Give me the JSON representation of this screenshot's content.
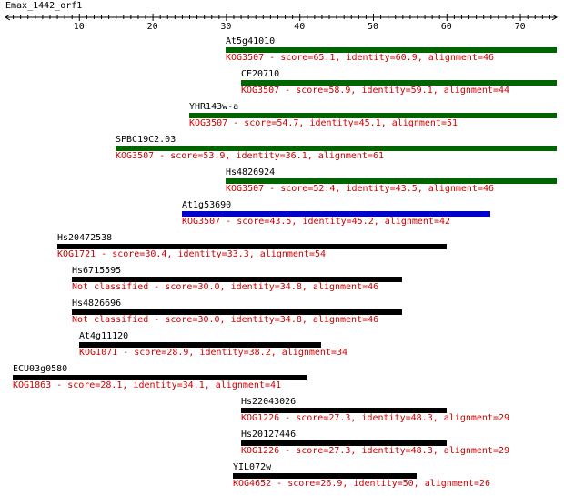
{
  "query": {
    "title": "Emax_1442_orf1",
    "axis": {
      "min": 0,
      "max": 75,
      "major_step": 10,
      "minor_step": 1,
      "labels": [
        "10",
        "20",
        "30",
        "40",
        "50",
        "60",
        "70"
      ]
    }
  },
  "colors": {
    "green": "#006400",
    "blue": "#0000cc",
    "black": "#000000",
    "desc": "#d00000"
  },
  "hits": [
    {
      "name": "At5g41010",
      "start": 30,
      "end": 75,
      "color": "#006400",
      "desc": "KOG3507 - score=65.1, identity=60.9, alignment=46"
    },
    {
      "name": "CE20710",
      "start": 32,
      "end": 75,
      "color": "#006400",
      "desc": "KOG3507 - score=58.9, identity=59.1, alignment=44"
    },
    {
      "name": "YHR143w-a",
      "start": 25,
      "end": 75,
      "color": "#006400",
      "desc": "KOG3507 - score=54.7, identity=45.1, alignment=51"
    },
    {
      "name": "SPBC19C2.03",
      "start": 15,
      "end": 75,
      "color": "#006400",
      "desc": "KOG3507 - score=53.9, identity=36.1, alignment=61"
    },
    {
      "name": "Hs4826924",
      "start": 30,
      "end": 75,
      "color": "#006400",
      "desc": "KOG3507 - score=52.4, identity=43.5, alignment=46"
    },
    {
      "name": "At1g53690",
      "start": 24,
      "end": 66,
      "color": "#0000cc",
      "desc": "KOG3507 - score=43.5, identity=45.2, alignment=42"
    },
    {
      "name": "Hs20472538",
      "start": 7,
      "end": 60,
      "color": "#000000",
      "desc": "KOG1721 - score=30.4, identity=33.3, alignment=54"
    },
    {
      "name": "Hs6715595",
      "start": 9,
      "end": 54,
      "color": "#000000",
      "desc": "Not classified - score=30.0, identity=34.8, alignment=46"
    },
    {
      "name": "Hs4826696",
      "start": 9,
      "end": 54,
      "color": "#000000",
      "desc": "Not classified - score=30.0, identity=34.8, alignment=46"
    },
    {
      "name": "At4g11120",
      "start": 10,
      "end": 43,
      "color": "#000000",
      "desc": "KOG1071 - score=28.9, identity=38.2, alignment=34"
    },
    {
      "name": "ECU03g0580",
      "start": 1,
      "end": 41,
      "color": "#000000",
      "desc": "KOG1863 - score=28.1, identity=34.1, alignment=41"
    },
    {
      "name": "Hs22043026",
      "start": 32,
      "end": 60,
      "color": "#000000",
      "desc": "KOG1226 - score=27.3, identity=48.3, alignment=29"
    },
    {
      "name": "Hs20127446",
      "start": 32,
      "end": 60,
      "color": "#000000",
      "desc": "KOG1226 - score=27.3, identity=48.3, alignment=29"
    },
    {
      "name": "YIL072w",
      "start": 31,
      "end": 56,
      "color": "#000000",
      "desc": "KOG4652 - score=26.9, identity=50, alignment=26"
    }
  ]
}
